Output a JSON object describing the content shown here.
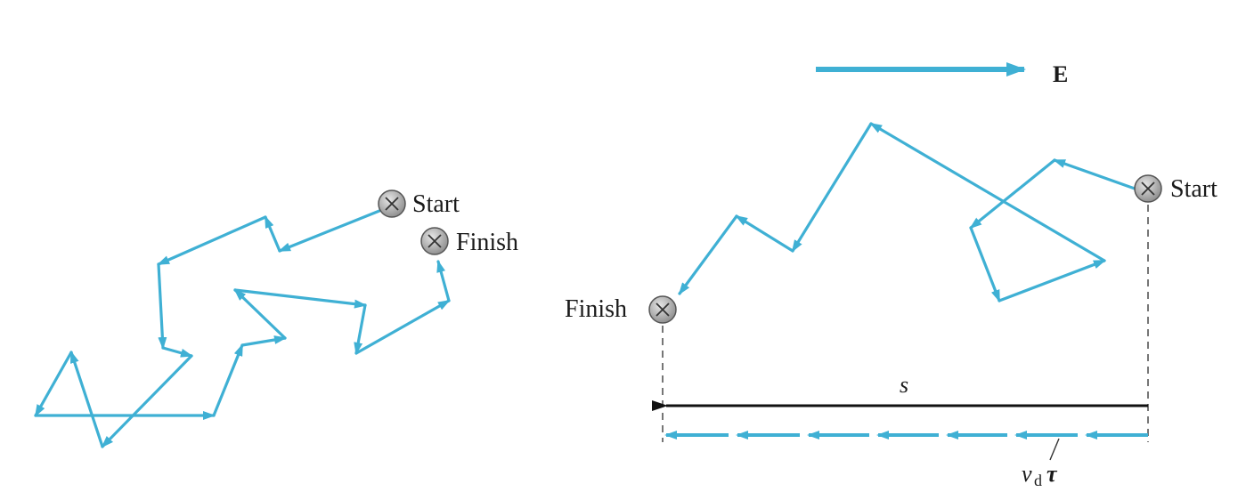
{
  "labels": {
    "left_start": "Start",
    "left_finish": "Finish",
    "right_start": "Start",
    "right_finish": "Finish",
    "field": "E",
    "displacement": "s",
    "drift_v": "v",
    "drift_sub": "d",
    "drift_tau": "τ"
  },
  "colors": {
    "path": "#3fb0d4",
    "arrow_dark": "#111111",
    "marker_fill": "#bdbdbd"
  },
  "icons": {
    "start_marker": "circle-x-icon",
    "finish_marker": "circle-x-icon"
  }
}
